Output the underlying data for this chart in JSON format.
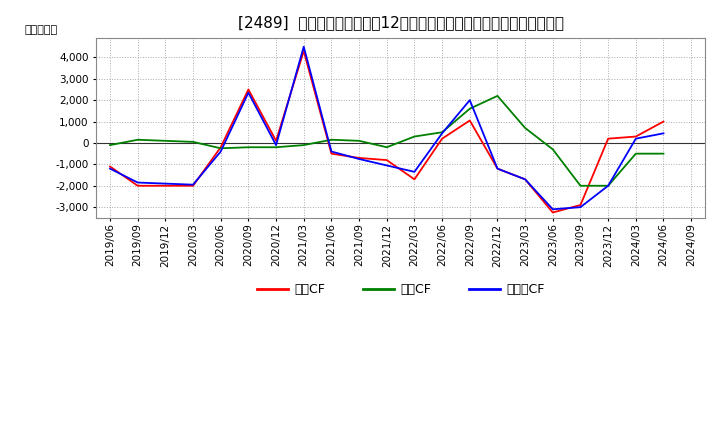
{
  "title": "[2489]  キャッシュフローの12か月移動合計の対前年同期増減額の推移",
  "ylabel": "（百万円）",
  "x_labels": [
    "2019/06",
    "2019/09",
    "2019/12",
    "2020/03",
    "2020/06",
    "2020/09",
    "2020/12",
    "2021/03",
    "2021/06",
    "2021/09",
    "2021/12",
    "2022/03",
    "2022/06",
    "2022/09",
    "2022/12",
    "2023/03",
    "2023/06",
    "2023/09",
    "2023/12",
    "2024/03",
    "2024/06",
    "2024/09"
  ],
  "operating_cf": [
    -1100,
    -2000,
    -2000,
    -2000,
    -200,
    2500,
    100,
    4300,
    -500,
    -700,
    -800,
    -1700,
    200,
    1050,
    -1200,
    -1700,
    -3250,
    -2900,
    200,
    300,
    1000,
    null
  ],
  "investing_cf": [
    -100,
    150,
    100,
    50,
    -250,
    -200,
    -200,
    -100,
    150,
    100,
    -200,
    300,
    500,
    1600,
    2200,
    700,
    -300,
    -2000,
    -2000,
    -500,
    -500,
    null
  ],
  "free_cf": [
    -1200,
    -1850,
    -1900,
    -1950,
    -400,
    2350,
    -100,
    4500,
    -400,
    -750,
    -1050,
    -1350,
    450,
    2000,
    -1200,
    -1700,
    -3100,
    -3000,
    -2000,
    200,
    450,
    null
  ],
  "line_colors": {
    "operating": "#ff0000",
    "investing": "#008000",
    "free": "#0000ff"
  },
  "legend_labels": [
    "営業CF",
    "投資CF",
    "フリーCF"
  ],
  "ylim": [
    -3500,
    4900
  ],
  "yticks": [
    -3000,
    -2000,
    -1000,
    0,
    1000,
    2000,
    3000,
    4000
  ],
  "background_color": "#ffffff",
  "plot_bg_color": "#ffffff",
  "grid_color": "#aaaaaa",
  "title_fontsize": 11,
  "axis_fontsize": 7.5
}
